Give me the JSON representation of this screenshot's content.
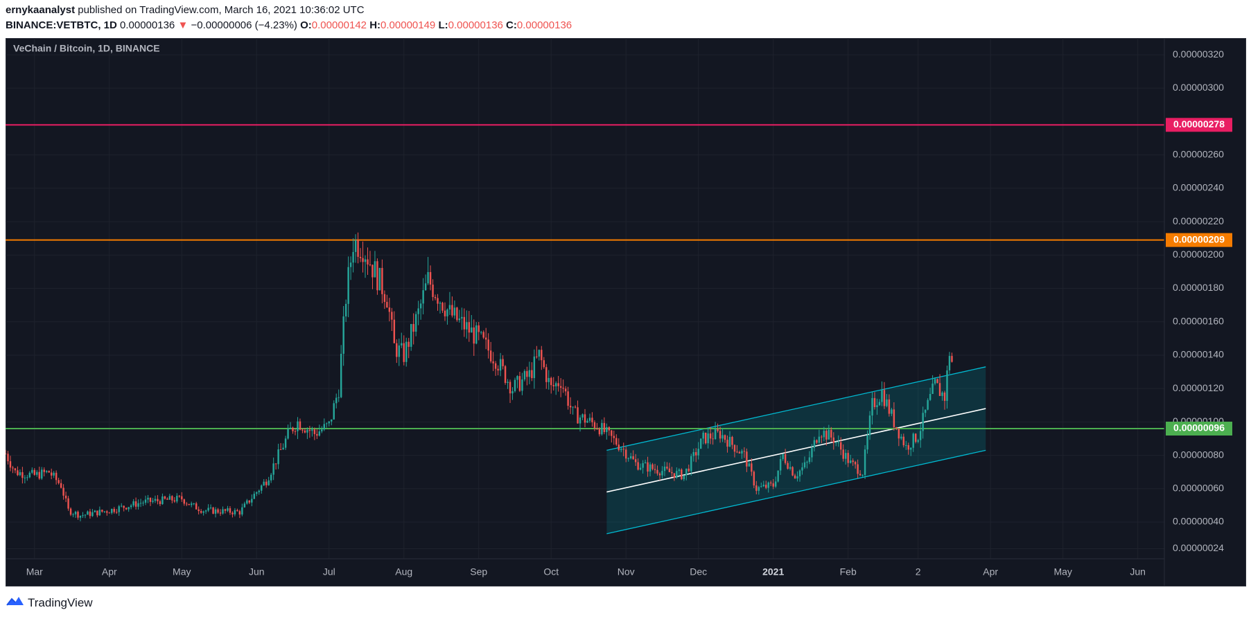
{
  "header": {
    "publisher": "ernykaanalyst",
    "published_text": "published on TradingView.com, March 16, 2021 10:36:02 UTC",
    "symbol": "BINANCE:VETBTC, 1D",
    "last": "0.00000136",
    "change": "−0.00000006 (−4.23%)",
    "o_label": "O:",
    "o_value": "0.00000142",
    "h_label": "H:",
    "h_value": "0.00000149",
    "l_label": "L:",
    "l_value": "0.00000136",
    "c_label": "C:",
    "c_value": "0.00000136",
    "down_arrow": "▼"
  },
  "footer": {
    "brand": "TradingView",
    "logo_icon": "tradingview-logo-icon"
  },
  "colors": {
    "background": "#131722",
    "up": "#26a69a",
    "down": "#ef5350",
    "resistance_high": "#e91e63",
    "resistance_mid": "#f57c00",
    "support": "#4caf50",
    "channel": "#00bcd4",
    "channel_mid": "#ffffff"
  },
  "chart_data": {
    "type": "candlestick",
    "title": "VeChain / Bitcoin, 1D, BINANCE",
    "y_scale": "linear",
    "ylim": [
      1.8e-07,
      3.3e-06
    ],
    "x_range": [
      "2020-02-18",
      "2021-06-12"
    ],
    "y_tick_labels": [
      "0.00000320",
      "0.00000300",
      "0.00000260",
      "0.00000240",
      "0.00000220",
      "0.00000200",
      "0.00000180",
      "0.00000160",
      "0.00000140",
      "0.00000120",
      "0.00000100",
      "0.00000080",
      "0.00000060",
      "0.00000040",
      "0.00000024"
    ],
    "x_tick_labels": [
      {
        "label": "Mar",
        "date": "2020-03-01",
        "bold": false
      },
      {
        "label": "Apr",
        "date": "2020-04-01",
        "bold": false
      },
      {
        "label": "May",
        "date": "2020-05-01",
        "bold": false
      },
      {
        "label": "Jun",
        "date": "2020-06-01",
        "bold": false
      },
      {
        "label": "Jul",
        "date": "2020-07-01",
        "bold": false
      },
      {
        "label": "Aug",
        "date": "2020-08-01",
        "bold": false
      },
      {
        "label": "Sep",
        "date": "2020-09-01",
        "bold": false
      },
      {
        "label": "Oct",
        "date": "2020-10-01",
        "bold": false
      },
      {
        "label": "Nov",
        "date": "2020-11-01",
        "bold": false
      },
      {
        "label": "Dec",
        "date": "2020-12-01",
        "bold": false
      },
      {
        "label": "2021",
        "date": "2021-01-01",
        "bold": true
      },
      {
        "label": "Feb",
        "date": "2021-02-01",
        "bold": false
      },
      {
        "label": "2",
        "date": "2021-03-02",
        "bold": false
      },
      {
        "label": "Apr",
        "date": "2021-04-01",
        "bold": false
      },
      {
        "label": "May",
        "date": "2021-05-01",
        "bold": false
      },
      {
        "label": "Jun",
        "date": "2021-06-01",
        "bold": false
      }
    ],
    "horizontal_lines": [
      {
        "value": 2.78e-06,
        "label": "0.00000278",
        "color": "#e91e63"
      },
      {
        "value": 2.09e-06,
        "label": "0.00000209",
        "color": "#f57c00"
      },
      {
        "value": 9.6e-07,
        "label": "0.00000096",
        "color": "#4caf50"
      }
    ],
    "channel": {
      "start_date": "2020-10-24",
      "end_date": "2021-03-30",
      "upper": [
        8.3e-07,
        1.33e-06
      ],
      "middle": [
        5.8e-07,
        1.08e-06
      ],
      "lower": [
        3.3e-07,
        8.3e-07
      ],
      "fill": "rgba(0,150,160,0.22)"
    },
    "price_path": [
      [
        "2020-02-18",
        8.1e-07
      ],
      [
        "2020-02-22",
        7e-07
      ],
      [
        "2020-03-01",
        6.8e-07
      ],
      [
        "2020-03-07",
        7e-07
      ],
      [
        "2020-03-12",
        6.2e-07
      ],
      [
        "2020-03-15",
        4.7e-07
      ],
      [
        "2020-03-20",
        4.4e-07
      ],
      [
        "2020-04-01",
        4.7e-07
      ],
      [
        "2020-04-15",
        5.2e-07
      ],
      [
        "2020-05-01",
        5.4e-07
      ],
      [
        "2020-05-05",
        5e-07
      ],
      [
        "2020-05-10",
        4.7e-07
      ],
      [
        "2020-05-25",
        4.6e-07
      ],
      [
        "2020-06-05",
        6.5e-07
      ],
      [
        "2020-06-15",
        9.5e-07
      ],
      [
        "2020-06-18",
        1e-06
      ],
      [
        "2020-06-25",
        9.3e-07
      ],
      [
        "2020-07-01",
        9.8e-07
      ],
      [
        "2020-07-05",
        1.2e-06
      ],
      [
        "2020-07-08",
        1.75e-06
      ],
      [
        "2020-07-11",
        2.08e-06
      ],
      [
        "2020-07-15",
        2.05e-06
      ],
      [
        "2020-07-20",
        1.9e-06
      ],
      [
        "2020-07-25",
        1.75e-06
      ],
      [
        "2020-07-28",
        1.45e-06
      ],
      [
        "2020-08-01",
        1.4e-06
      ],
      [
        "2020-08-07",
        1.65e-06
      ],
      [
        "2020-08-11",
        1.85e-06
      ],
      [
        "2020-08-20",
        1.65e-06
      ],
      [
        "2020-09-01",
        1.5e-06
      ],
      [
        "2020-09-08",
        1.38e-06
      ],
      [
        "2020-09-15",
        1.2e-06
      ],
      [
        "2020-09-22",
        1.28e-06
      ],
      [
        "2020-09-26",
        1.4e-06
      ],
      [
        "2020-10-01",
        1.2e-06
      ],
      [
        "2020-10-05",
        1.25e-06
      ],
      [
        "2020-10-10",
        1.05e-06
      ],
      [
        "2020-10-20",
        9.8e-07
      ],
      [
        "2020-10-30",
        8.5e-07
      ],
      [
        "2020-11-05",
        7.5e-07
      ],
      [
        "2020-11-12",
        7.2e-07
      ],
      [
        "2020-11-25",
        6.8e-07
      ],
      [
        "2020-12-03",
        9e-07
      ],
      [
        "2020-12-10",
        9.3e-07
      ],
      [
        "2020-12-20",
        8e-07
      ],
      [
        "2020-12-25",
        6e-07
      ],
      [
        "2021-01-01",
        6.2e-07
      ],
      [
        "2021-01-05",
        8e-07
      ],
      [
        "2021-01-10",
        6.8e-07
      ],
      [
        "2021-01-15",
        7.5e-07
      ],
      [
        "2021-01-20",
        9.5e-07
      ],
      [
        "2021-01-26",
        9e-07
      ],
      [
        "2021-02-02",
        7.5e-07
      ],
      [
        "2021-02-07",
        7e-07
      ],
      [
        "2021-02-11",
        1.1e-06
      ],
      [
        "2021-02-15",
        1.18e-06
      ],
      [
        "2021-02-20",
        1e-06
      ],
      [
        "2021-02-25",
        8.5e-07
      ],
      [
        "2021-03-02",
        9.2e-07
      ],
      [
        "2021-03-06",
        1.1e-06
      ],
      [
        "2021-03-09",
        1.22e-06
      ],
      [
        "2021-03-13",
        1.15e-06
      ],
      [
        "2021-03-15",
        1.42e-06
      ],
      [
        "2021-03-16",
        1.36e-06
      ]
    ]
  }
}
